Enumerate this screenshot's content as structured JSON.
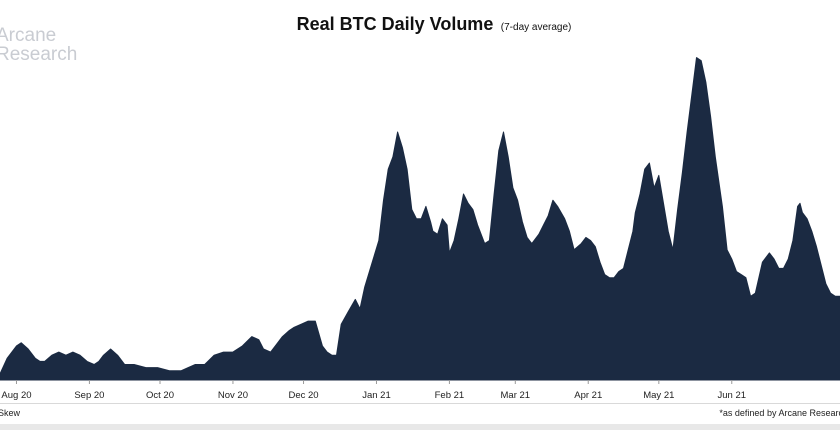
{
  "watermark": {
    "line1": "Arcane",
    "line2": "Research"
  },
  "header": {
    "title": "Real BTC Daily Volume",
    "subtitle": "(7-day average)"
  },
  "footer": {
    "source": "Skew",
    "footnote": "*as defined by Arcane Research"
  },
  "colors": {
    "area": "#1b2a42",
    "tick": "#9a9a9a",
    "text": "#222222"
  },
  "chart_data": {
    "type": "area",
    "title": "Real BTC Daily Volume",
    "subtitle": "(7-day average)",
    "xlabel": "",
    "ylabel": "",
    "y_axis_labels_shown": false,
    "ylim": [
      0,
      100
    ],
    "x_range_days": [
      -7,
      350
    ],
    "ticks": [
      {
        "label": "Aug 20",
        "day": 0
      },
      {
        "label": "Sep 20",
        "day": 31
      },
      {
        "label": "Oct 20",
        "day": 61
      },
      {
        "label": "Nov 20",
        "day": 92
      },
      {
        "label": "Dec 20",
        "day": 122
      },
      {
        "label": "Jan 21",
        "day": 153
      },
      {
        "label": "Feb 21",
        "day": 184
      },
      {
        "label": "Mar 21",
        "day": 212
      },
      {
        "label": "Apr 21",
        "day": 243
      },
      {
        "label": "May 21",
        "day": 273
      },
      {
        "label": "Jun 21",
        "day": 304
      }
    ],
    "series": [
      {
        "name": "Real BTC daily volume (7-day average, relative)",
        "x": [
          -7,
          -4,
          0,
          2,
          5,
          8,
          10,
          12,
          15,
          18,
          21,
          24,
          27,
          30,
          33,
          35,
          37,
          40,
          43,
          46,
          50,
          55,
          60,
          65,
          70,
          73,
          76,
          80,
          84,
          88,
          92,
          96,
          100,
          103,
          105,
          108,
          110,
          113,
          116,
          118,
          121,
          124,
          127,
          130,
          132,
          134,
          136,
          138,
          141,
          144,
          146,
          148,
          150,
          152,
          154,
          156,
          158,
          160,
          162,
          164,
          166,
          168,
          170,
          172,
          174,
          176,
          177,
          179,
          181,
          183,
          184,
          186,
          188,
          190,
          192,
          194,
          196,
          199,
          201,
          203,
          205,
          207,
          209,
          211,
          213,
          215,
          217,
          219,
          222,
          224,
          226,
          228,
          230,
          233,
          235,
          237,
          240,
          242,
          244,
          246,
          248,
          250,
          252,
          254,
          256,
          258,
          260,
          262,
          263,
          265,
          267,
          269,
          271,
          273,
          275,
          277,
          279,
          281,
          283,
          285,
          287,
          289,
          291,
          293,
          295,
          297,
          300,
          302,
          304,
          306,
          308,
          310,
          312,
          314,
          317,
          320,
          322,
          324,
          326,
          328,
          330,
          332,
          333,
          334,
          336,
          338,
          340,
          342,
          344,
          346,
          348,
          350
        ],
        "y": [
          2,
          7,
          11,
          12,
          10,
          7,
          6,
          6,
          8,
          9,
          8,
          9,
          8,
          6,
          5,
          6,
          8,
          10,
          8,
          5,
          5,
          4,
          4,
          3,
          3,
          4,
          5,
          5,
          8,
          9,
          9,
          11,
          14,
          13,
          10,
          9,
          11,
          14,
          16,
          17,
          18,
          19,
          19,
          11,
          9,
          8,
          8,
          18,
          22,
          26,
          23,
          30,
          35,
          40,
          45,
          58,
          68,
          72,
          80,
          75,
          68,
          55,
          52,
          52,
          56,
          51,
          48,
          47,
          52,
          50,
          41,
          45,
          52,
          60,
          57,
          55,
          50,
          44,
          45,
          60,
          74,
          80,
          72,
          62,
          58,
          51,
          46,
          44,
          47,
          50,
          53,
          58,
          56,
          52,
          48,
          42,
          44,
          46,
          45,
          43,
          38,
          34,
          33,
          33,
          35,
          36,
          42,
          48,
          54,
          60,
          68,
          70,
          62,
          66,
          57,
          48,
          42,
          55,
          67,
          80,
          92,
          104,
          103,
          96,
          85,
          72,
          56,
          42,
          39,
          35,
          34,
          33,
          27,
          28,
          38,
          41,
          39,
          36,
          36,
          39,
          45,
          56,
          57,
          54,
          52,
          48,
          43,
          37,
          31,
          28,
          27,
          27
        ]
      }
    ]
  }
}
